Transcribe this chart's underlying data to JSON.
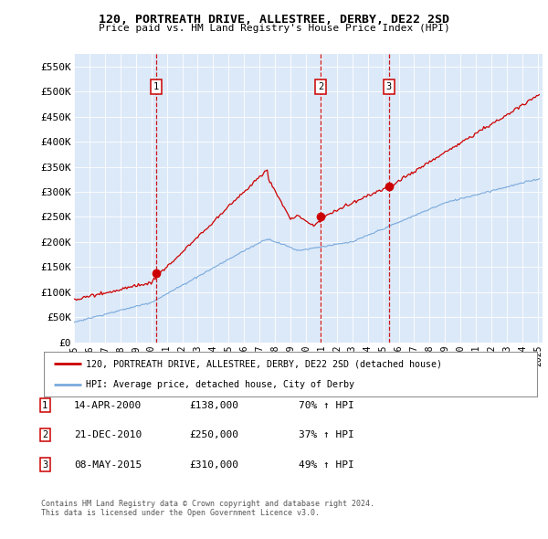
{
  "title1": "120, PORTREATH DRIVE, ALLESTREE, DERBY, DE22 2SD",
  "title2": "Price paid vs. HM Land Registry's House Price Index (HPI)",
  "ylim": [
    0,
    575000
  ],
  "yticks": [
    0,
    50000,
    100000,
    150000,
    200000,
    250000,
    300000,
    350000,
    400000,
    450000,
    500000,
    550000
  ],
  "ytick_labels": [
    "£0",
    "£50K",
    "£100K",
    "£150K",
    "£200K",
    "£250K",
    "£300K",
    "£350K",
    "£400K",
    "£450K",
    "£500K",
    "£550K"
  ],
  "background_color": "#dce9f8",
  "red_color": "#cc0000",
  "blue_color": "#7aaadd",
  "transaction_times": [
    2000.29,
    2010.97,
    2015.36
  ],
  "transaction_prices": [
    138000,
    250000,
    310000
  ],
  "transaction_labels": [
    "1",
    "2",
    "3"
  ],
  "legend_red": "120, PORTREATH DRIVE, ALLESTREE, DERBY, DE22 2SD (detached house)",
  "legend_blue": "HPI: Average price, detached house, City of Derby",
  "table_rows": [
    [
      "1",
      "14-APR-2000",
      "£138,000",
      "70% ↑ HPI"
    ],
    [
      "2",
      "21-DEC-2010",
      "£250,000",
      "37% ↑ HPI"
    ],
    [
      "3",
      "08-MAY-2015",
      "£310,000",
      "49% ↑ HPI"
    ]
  ],
  "footnote1": "Contains HM Land Registry data © Crown copyright and database right 2024.",
  "footnote2": "This data is licensed under the Open Government Licence v3.0."
}
